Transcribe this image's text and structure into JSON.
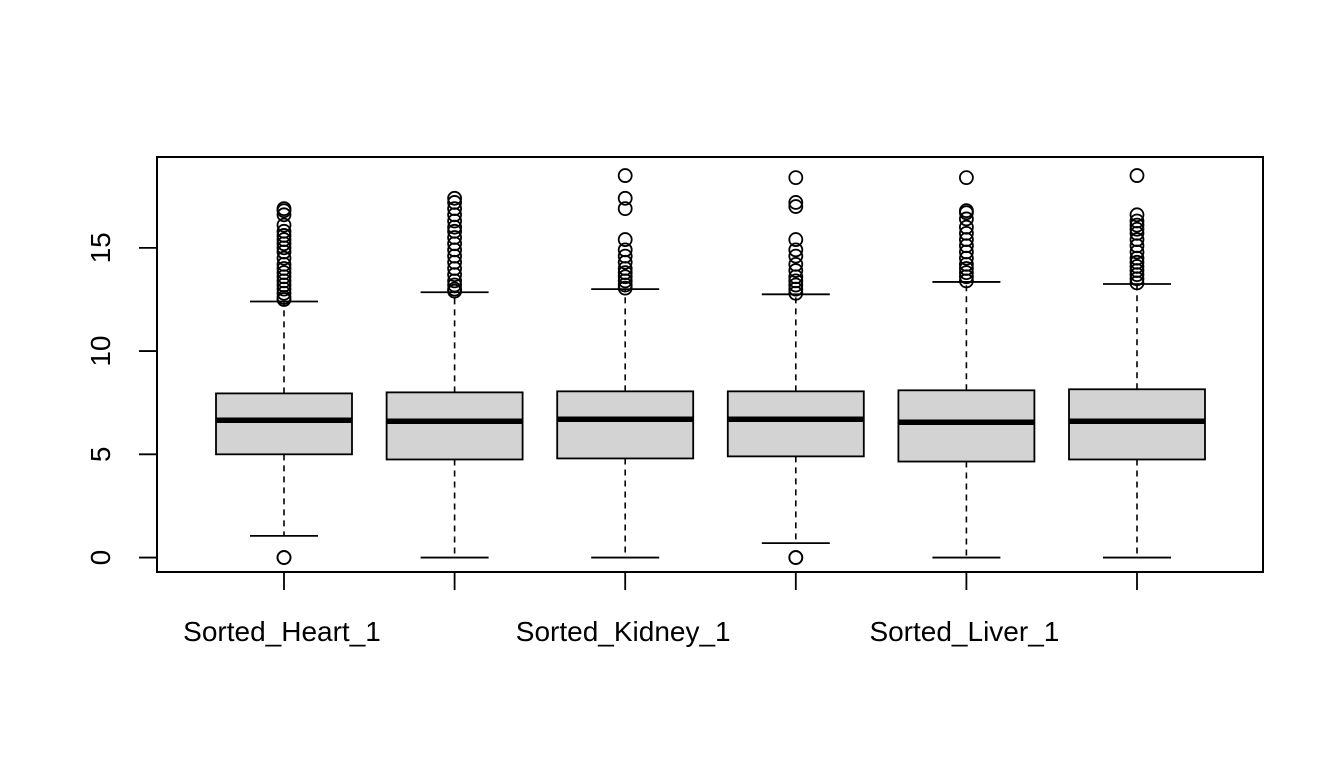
{
  "chart_data": {
    "type": "boxplot",
    "title": "",
    "xlabel": "",
    "ylabel": "",
    "ylim": [
      -0.7,
      19.4
    ],
    "yticks": [
      0,
      5,
      10,
      15
    ],
    "grid": false,
    "legend": "none",
    "colors": {
      "box_fill": "#d3d3d3",
      "stroke": "#000000",
      "background": "#ffffff"
    },
    "categories": [
      "Sorted_Heart_1",
      "",
      "Sorted_Kidney_1",
      "",
      "Sorted_Liver_1",
      ""
    ],
    "boxes": [
      {
        "q1": 5.0,
        "median": 6.65,
        "q3": 7.95,
        "whisker_low": 1.05,
        "whisker_high": 12.4,
        "outliers": [
          0.0,
          0.0,
          12.5,
          12.6,
          12.8,
          13.0,
          13.2,
          13.4,
          13.6,
          13.8,
          14.0,
          14.2,
          14.5,
          14.8,
          15.0,
          15.2,
          15.4,
          15.6,
          15.8,
          16.1,
          16.6,
          16.8,
          16.9
        ]
      },
      {
        "q1": 4.75,
        "median": 6.6,
        "q3": 8.0,
        "whisker_low": 0.0,
        "whisker_high": 12.85,
        "outliers": [
          12.9,
          13.0,
          13.2,
          13.4,
          13.7,
          14.0,
          14.3,
          14.6,
          14.9,
          15.2,
          15.5,
          15.8,
          16.0,
          16.3,
          16.6,
          16.9,
          17.2,
          17.4
        ]
      },
      {
        "q1": 4.8,
        "median": 6.7,
        "q3": 8.05,
        "whisker_low": 0.0,
        "whisker_high": 13.0,
        "outliers": [
          13.05,
          13.2,
          13.4,
          13.6,
          13.8,
          14.0,
          14.3,
          14.6,
          14.9,
          15.4,
          16.9,
          17.4,
          18.5
        ]
      },
      {
        "q1": 4.9,
        "median": 6.7,
        "q3": 8.05,
        "whisker_low": 0.7,
        "whisker_high": 12.75,
        "outliers": [
          0.0,
          0.0,
          12.8,
          13.0,
          13.2,
          13.4,
          13.6,
          13.9,
          14.2,
          14.6,
          14.9,
          15.4,
          17.0,
          17.2,
          18.4
        ]
      },
      {
        "q1": 4.65,
        "median": 6.55,
        "q3": 8.1,
        "whisker_low": 0.0,
        "whisker_high": 13.35,
        "outliers": [
          13.4,
          13.6,
          13.8,
          14.0,
          14.2,
          14.5,
          14.8,
          15.1,
          15.4,
          15.7,
          16.0,
          16.4,
          16.7,
          16.8,
          18.4
        ]
      },
      {
        "q1": 4.75,
        "median": 6.6,
        "q3": 8.15,
        "whisker_low": 0.0,
        "whisker_high": 13.25,
        "outliers": [
          13.3,
          13.5,
          13.7,
          13.9,
          14.1,
          14.3,
          14.5,
          14.8,
          15.1,
          15.4,
          15.7,
          15.9,
          16.1,
          16.3,
          16.6,
          18.5
        ]
      }
    ]
  }
}
